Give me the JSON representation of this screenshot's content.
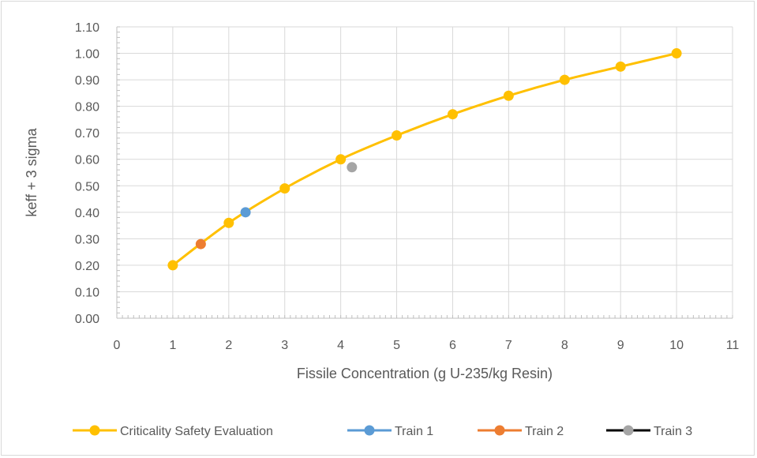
{
  "chart_data": {
    "type": "scatter",
    "xlabel": "Fissile Concentration (g U-235/kg Resin)",
    "ylabel": "keff + 3 sigma",
    "xlim": [
      0,
      11
    ],
    "ylim": [
      0.0,
      1.1
    ],
    "x_ticks": [
      "0",
      "1",
      "2",
      "3",
      "4",
      "5",
      "6",
      "7",
      "8",
      "9",
      "10",
      "11"
    ],
    "y_ticks": [
      "0.00",
      "0.10",
      "0.20",
      "0.30",
      "0.40",
      "0.50",
      "0.60",
      "0.70",
      "0.80",
      "0.90",
      "1.00",
      "1.10"
    ],
    "grid": true,
    "legend_position": "bottom",
    "series": [
      {
        "name": "Criticality Safety Evaluation",
        "color": "#FFC000",
        "line": true,
        "legend_line_color": "#FFC000",
        "x": [
          1,
          2,
          3,
          4,
          5,
          6,
          7,
          8,
          9,
          10
        ],
        "y": [
          0.2,
          0.36,
          0.49,
          0.6,
          0.69,
          0.77,
          0.84,
          0.9,
          0.95,
          1.0
        ]
      },
      {
        "name": "Train 1",
        "color": "#5B9BD5",
        "line": false,
        "legend_line_color": "#5B9BD5",
        "x": [
          2.3
        ],
        "y": [
          0.4
        ]
      },
      {
        "name": "Train 2",
        "color": "#ED7D31",
        "line": false,
        "legend_line_color": "#ED7D31",
        "x": [
          1.5
        ],
        "y": [
          0.28
        ]
      },
      {
        "name": "Train 3",
        "color": "#A5A5A5",
        "line": false,
        "legend_line_color": "#000000",
        "x": [
          4.2
        ],
        "y": [
          0.57
        ]
      }
    ]
  }
}
